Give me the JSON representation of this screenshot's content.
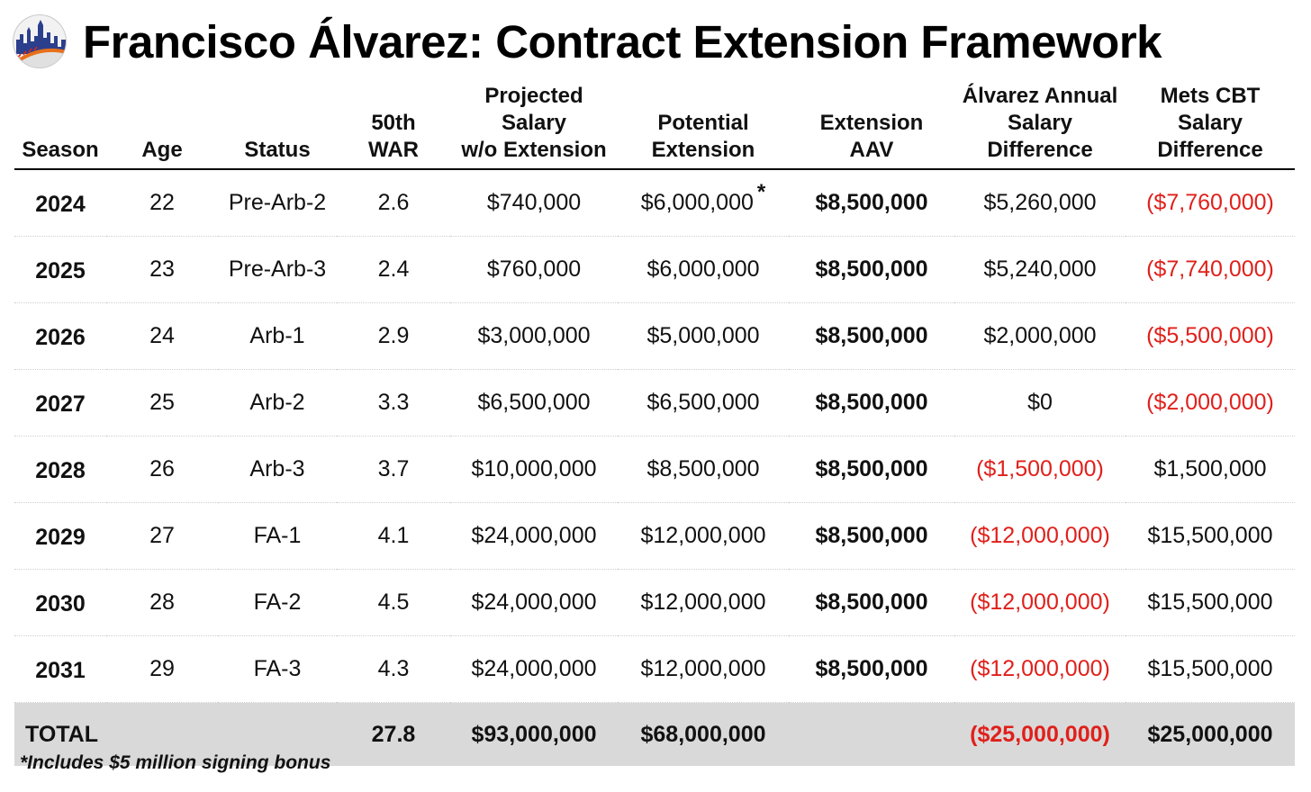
{
  "title": "Francisco Álvarez: Contract Extension Framework",
  "columns": [
    [
      "Season"
    ],
    [
      "Age"
    ],
    [
      "Status"
    ],
    [
      "50th",
      "WAR"
    ],
    [
      "Projected",
      "Salary",
      "w/o Extension"
    ],
    [
      "Potential",
      "Extension"
    ],
    [
      "Extension",
      "AAV"
    ],
    [
      "Álvarez Annual",
      "Salary",
      "Difference"
    ],
    [
      "Mets CBT",
      "Salary",
      "Difference"
    ]
  ],
  "rows": [
    {
      "season": "2024",
      "age": "22",
      "status": "Pre-Arb-2",
      "war": "2.6",
      "projected": "$740,000",
      "extension": "$6,000,000",
      "ext_mark": "*",
      "aav": "$8,500,000",
      "alvarez_diff": "$5,260,000",
      "alvarez_neg": false,
      "mets_diff": "($7,760,000)",
      "mets_neg": true
    },
    {
      "season": "2025",
      "age": "23",
      "status": "Pre-Arb-3",
      "war": "2.4",
      "projected": "$760,000",
      "extension": "$6,000,000",
      "ext_mark": "",
      "aav": "$8,500,000",
      "alvarez_diff": "$5,240,000",
      "alvarez_neg": false,
      "mets_diff": "($7,740,000)",
      "mets_neg": true
    },
    {
      "season": "2026",
      "age": "24",
      "status": "Arb-1",
      "war": "2.9",
      "projected": "$3,000,000",
      "extension": "$5,000,000",
      "ext_mark": "",
      "aav": "$8,500,000",
      "alvarez_diff": "$2,000,000",
      "alvarez_neg": false,
      "mets_diff": "($5,500,000)",
      "mets_neg": true
    },
    {
      "season": "2027",
      "age": "25",
      "status": "Arb-2",
      "war": "3.3",
      "projected": "$6,500,000",
      "extension": "$6,500,000",
      "ext_mark": "",
      "aav": "$8,500,000",
      "alvarez_diff": "$0",
      "alvarez_neg": false,
      "mets_diff": "($2,000,000)",
      "mets_neg": true
    },
    {
      "season": "2028",
      "age": "26",
      "status": "Arb-3",
      "war": "3.7",
      "projected": "$10,000,000",
      "extension": "$8,500,000",
      "ext_mark": "",
      "aav": "$8,500,000",
      "alvarez_diff": "($1,500,000)",
      "alvarez_neg": true,
      "mets_diff": "$1,500,000",
      "mets_neg": false
    },
    {
      "season": "2029",
      "age": "27",
      "status": "FA-1",
      "war": "4.1",
      "projected": "$24,000,000",
      "extension": "$12,000,000",
      "ext_mark": "",
      "aav": "$8,500,000",
      "alvarez_diff": "($12,000,000)",
      "alvarez_neg": true,
      "mets_diff": "$15,500,000",
      "mets_neg": false
    },
    {
      "season": "2030",
      "age": "28",
      "status": "FA-2",
      "war": "4.5",
      "projected": "$24,000,000",
      "extension": "$12,000,000",
      "ext_mark": "",
      "aav": "$8,500,000",
      "alvarez_diff": "($12,000,000)",
      "alvarez_neg": true,
      "mets_diff": "$15,500,000",
      "mets_neg": false
    },
    {
      "season": "2031",
      "age": "29",
      "status": "FA-3",
      "war": "4.3",
      "projected": "$24,000,000",
      "extension": "$12,000,000",
      "ext_mark": "",
      "aav": "$8,500,000",
      "alvarez_diff": "($12,000,000)",
      "alvarez_neg": true,
      "mets_diff": "$15,500,000",
      "mets_neg": false
    }
  ],
  "total": {
    "label": "TOTAL",
    "war": "27.8",
    "projected": "$93,000,000",
    "extension": "$68,000,000",
    "alvarez_diff": "($25,000,000)",
    "mets_diff": "$25,000,000"
  },
  "footnote": "*Includes $5 million signing bonus",
  "colors": {
    "negative": "#e0201b",
    "total_bg": "#d9d9d9",
    "logo_blue": "#2b3f8c",
    "logo_orange": "#e8701a"
  },
  "icons": {
    "logo": "mets-skyline-baseball-logo"
  }
}
